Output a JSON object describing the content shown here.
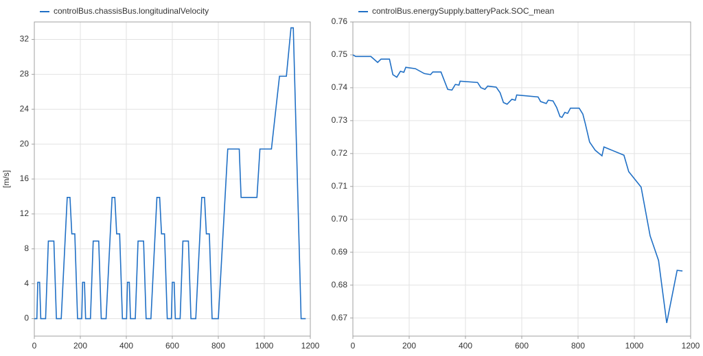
{
  "chart_data": [
    {
      "type": "line",
      "x": [
        0,
        11,
        15,
        23,
        28,
        49,
        61,
        85,
        96,
        117,
        143,
        155,
        163,
        176,
        188,
        195,
        206,
        210,
        218,
        223,
        244,
        256,
        280,
        291,
        312,
        338,
        350,
        358,
        371,
        383,
        390,
        401,
        405,
        413,
        418,
        439,
        451,
        475,
        486,
        507,
        533,
        545,
        553,
        566,
        578,
        585,
        596,
        600,
        608,
        613,
        634,
        646,
        670,
        681,
        702,
        728,
        740,
        748,
        761,
        773,
        780,
        800,
        841,
        891,
        899,
        968,
        981,
        1031,
        1066,
        1096,
        1116,
        1126,
        1160,
        1180
      ],
      "series": [
        {
          "name": "controlBus.chassisBus.longitudinalVelocity",
          "color": "#1f6fc5",
          "values": [
            0,
            0,
            4.17,
            4.17,
            0,
            0,
            8.89,
            8.89,
            0,
            0,
            13.89,
            13.89,
            9.72,
            9.72,
            0,
            0,
            0,
            4.17,
            4.17,
            0,
            0,
            8.89,
            8.89,
            0,
            0,
            13.89,
            13.89,
            9.72,
            9.72,
            0,
            0,
            0,
            4.17,
            4.17,
            0,
            0,
            8.89,
            8.89,
            0,
            0,
            13.89,
            13.89,
            9.72,
            9.72,
            0,
            0,
            0,
            4.17,
            4.17,
            0,
            0,
            8.89,
            8.89,
            0,
            0,
            13.89,
            13.89,
            9.72,
            9.72,
            0,
            0,
            0,
            19.44,
            19.44,
            13.89,
            13.89,
            19.44,
            19.44,
            27.78,
            27.78,
            33.33,
            33.33,
            0,
            0
          ]
        }
      ],
      "xlim": [
        0,
        1200
      ],
      "xticks": [
        0,
        200,
        400,
        600,
        800,
        1000,
        1200
      ],
      "ylim": [
        -2,
        34
      ],
      "yticks": [
        0,
        4,
        8,
        12,
        16,
        20,
        24,
        28,
        32
      ],
      "ylabel": "[m/s]",
      "grid": true
    },
    {
      "type": "line",
      "x": [
        0,
        10,
        64,
        88,
        100,
        130,
        142,
        156,
        169,
        181,
        188,
        222,
        254,
        276,
        284,
        313,
        337,
        352,
        364,
        377,
        381,
        443,
        455,
        469,
        479,
        509,
        523,
        535,
        548,
        565,
        577,
        582,
        658,
        667,
        687,
        694,
        711,
        724,
        736,
        743,
        753,
        763,
        773,
        804,
        817,
        826,
        841,
        861,
        885,
        892,
        963,
        980,
        1024,
        1056,
        1086,
        1115,
        1152,
        1171
      ],
      "series": [
        {
          "name": "controlBus.energySupply.batteryPack.SOC_mean",
          "color": "#1f6fc5",
          "values": [
            0.75,
            0.7495,
            0.7495,
            0.7477,
            0.7487,
            0.7487,
            0.744,
            0.7432,
            0.745,
            0.7447,
            0.7462,
            0.7458,
            0.7443,
            0.744,
            0.7448,
            0.7448,
            0.7395,
            0.7393,
            0.741,
            0.7408,
            0.742,
            0.7416,
            0.74,
            0.7395,
            0.7405,
            0.7402,
            0.7385,
            0.7355,
            0.735,
            0.7365,
            0.7362,
            0.7378,
            0.7372,
            0.7358,
            0.7352,
            0.7362,
            0.736,
            0.734,
            0.7312,
            0.731,
            0.7325,
            0.7322,
            0.7338,
            0.7338,
            0.732,
            0.729,
            0.7235,
            0.721,
            0.7193,
            0.722,
            0.7195,
            0.7145,
            0.7098,
            0.695,
            0.6875,
            0.6685,
            0.6845,
            0.6843
          ]
        }
      ],
      "xlim": [
        0,
        1200
      ],
      "xticks": [
        0,
        200,
        400,
        600,
        800,
        1000,
        1200
      ],
      "ylim": [
        0.6645,
        0.76
      ],
      "yticks": [
        0.67,
        0.68,
        0.69,
        {
          "value": 0.7,
          "label": "0.70"
        },
        0.71,
        0.72,
        0.73,
        0.74,
        0.75,
        0.76
      ],
      "grid": true
    }
  ]
}
